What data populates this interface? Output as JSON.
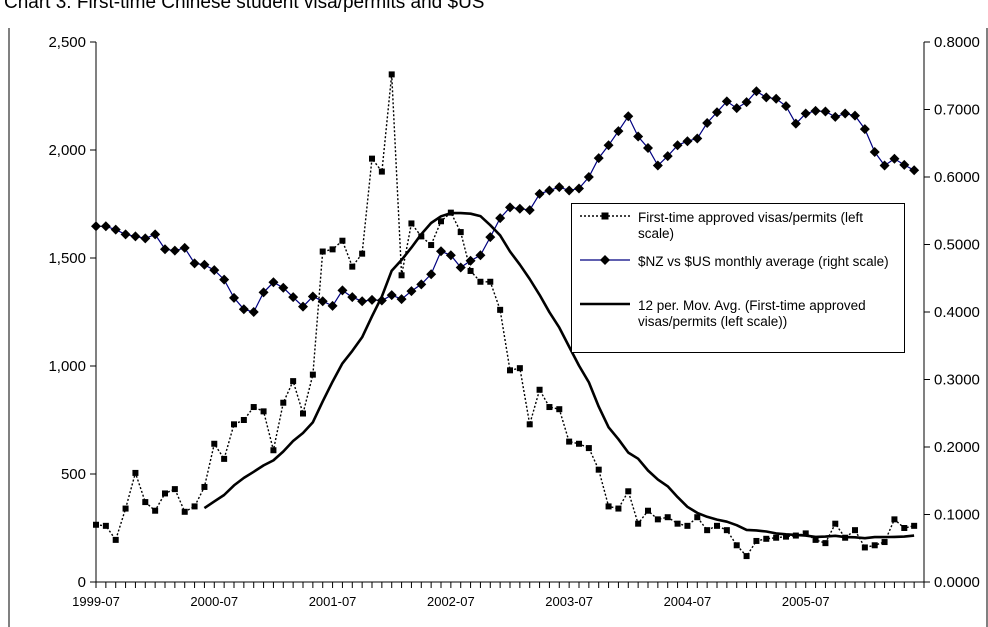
{
  "title": "Chart 3: First-time Chinese student visa/permits and $US",
  "chart_data": {
    "type": "line",
    "x": [
      "1999-07",
      "1999-08",
      "1999-09",
      "1999-10",
      "1999-11",
      "1999-12",
      "2000-01",
      "2000-02",
      "2000-03",
      "2000-04",
      "2000-05",
      "2000-06",
      "2000-07",
      "2000-08",
      "2000-09",
      "2000-10",
      "2000-11",
      "2000-12",
      "2001-01",
      "2001-02",
      "2001-03",
      "2001-04",
      "2001-05",
      "2001-06",
      "2001-07",
      "2001-08",
      "2001-09",
      "2001-10",
      "2001-11",
      "2001-12",
      "2002-01",
      "2002-02",
      "2002-03",
      "2002-04",
      "2002-05",
      "2002-06",
      "2002-07",
      "2002-08",
      "2002-09",
      "2002-10",
      "2002-11",
      "2002-12",
      "2003-01",
      "2003-02",
      "2003-03",
      "2003-04",
      "2003-05",
      "2003-06",
      "2003-07",
      "2003-08",
      "2003-09",
      "2003-10",
      "2003-11",
      "2003-12",
      "2004-01",
      "2004-02",
      "2004-03",
      "2004-04",
      "2004-05",
      "2004-06",
      "2004-07",
      "2004-08",
      "2004-09",
      "2004-10",
      "2004-11",
      "2004-12",
      "2005-01",
      "2005-02",
      "2005-03",
      "2005-04",
      "2005-05",
      "2005-06",
      "2005-07",
      "2005-08",
      "2005-09",
      "2005-10",
      "2005-11",
      "2005-12",
      "2006-01",
      "2006-02",
      "2006-03",
      "2006-04",
      "2006-05",
      "2006-06"
    ],
    "x_tick_labels": [
      "1999-07",
      "2000-07",
      "2001-07",
      "2002-07",
      "2003-07",
      "2004-07",
      "2005-07"
    ],
    "left_axis": {
      "ylim": [
        0,
        2500
      ],
      "ticks": [
        "0",
        "500",
        "1,000",
        "1,500",
        "2,000",
        "2,500"
      ],
      "tick_values": [
        0,
        500,
        1000,
        1500,
        2000,
        2500
      ]
    },
    "right_axis": {
      "ylim": [
        0,
        0.8
      ],
      "ticks": [
        "0.0000",
        "0.1000",
        "0.2000",
        "0.3000",
        "0.4000",
        "0.5000",
        "0.6000",
        "0.7000",
        "0.8000"
      ],
      "tick_values": [
        0,
        0.1,
        0.2,
        0.3,
        0.4,
        0.5,
        0.6,
        0.7,
        0.8
      ]
    },
    "grid": false,
    "legend_position": "right",
    "series": [
      {
        "name": "First-time approved visas/permits (left scale)",
        "axis": "left",
        "style": "dotted-square",
        "color": "#000000",
        "values": [
          265,
          260,
          195,
          340,
          505,
          370,
          330,
          410,
          430,
          325,
          350,
          440,
          640,
          570,
          730,
          750,
          810,
          790,
          610,
          830,
          930,
          780,
          960,
          1530,
          1540,
          1580,
          1460,
          1520,
          1960,
          1900,
          2350,
          1420,
          1660,
          1600,
          1560,
          1670,
          1710,
          1620,
          1440,
          1390,
          1390,
          1260,
          980,
          990,
          730,
          890,
          810,
          800,
          650,
          640,
          620,
          520,
          350,
          340,
          420,
          270,
          330,
          290,
          300,
          270,
          260,
          300,
          240,
          260,
          240,
          170,
          120,
          190,
          200,
          205,
          210,
          215,
          225,
          195,
          180,
          270,
          205,
          240,
          160,
          170,
          185,
          290,
          250,
          260
        ]
      },
      {
        "name": "$NZ vs $US monthly average (right scale)",
        "axis": "right",
        "style": "line-diamond",
        "color": "#000080",
        "values": [
          0.527,
          0.527,
          0.522,
          0.515,
          0.512,
          0.509,
          0.515,
          0.493,
          0.491,
          0.495,
          0.472,
          0.47,
          0.462,
          0.448,
          0.421,
          0.404,
          0.4,
          0.429,
          0.444,
          0.436,
          0.422,
          0.408,
          0.423,
          0.416,
          0.409,
          0.432,
          0.422,
          0.416,
          0.418,
          0.417,
          0.425,
          0.419,
          0.431,
          0.441,
          0.456,
          0.49,
          0.484,
          0.466,
          0.476,
          0.484,
          0.511,
          0.539,
          0.555,
          0.553,
          0.551,
          0.575,
          0.58,
          0.585,
          0.58,
          0.583,
          0.6,
          0.628,
          0.647,
          0.668,
          0.69,
          0.66,
          0.643,
          0.617,
          0.631,
          0.647,
          0.653,
          0.657,
          0.68,
          0.696,
          0.712,
          0.702,
          0.711,
          0.727,
          0.718,
          0.716,
          0.705,
          0.679,
          0.694,
          0.698,
          0.697,
          0.689,
          0.694,
          0.691,
          0.671,
          0.637,
          0.617,
          0.627,
          0.618,
          0.61
        ]
      },
      {
        "name": "12 per. Mov. Avg. (First-time approved visas/permits (left scale))",
        "axis": "left",
        "style": "line-thick",
        "color": "#000000",
        "values": [
          null,
          null,
          null,
          null,
          null,
          null,
          null,
          null,
          null,
          null,
          null,
          342,
          373,
          403,
          447,
          482,
          510,
          540,
          563,
          604,
          653,
          690,
          740,
          836,
          928,
          1012,
          1070,
          1133,
          1230,
          1322,
          1441,
          1491,
          1548,
          1610,
          1662,
          1693,
          1708,
          1708,
          1705,
          1694,
          1652,
          1605,
          1530,
          1469,
          1403,
          1329,
          1249,
          1178,
          1090,
          1002,
          924,
          812,
          716,
          661,
          599,
          571,
          516,
          474,
          443,
          393,
          348,
          320,
          302,
          289,
          279,
          263,
          241,
          239,
          234,
          225,
          221,
          218,
          215,
          209,
          210,
          214,
          208,
          207,
          203,
          208,
          208,
          209,
          210,
          215
        ]
      }
    ]
  }
}
